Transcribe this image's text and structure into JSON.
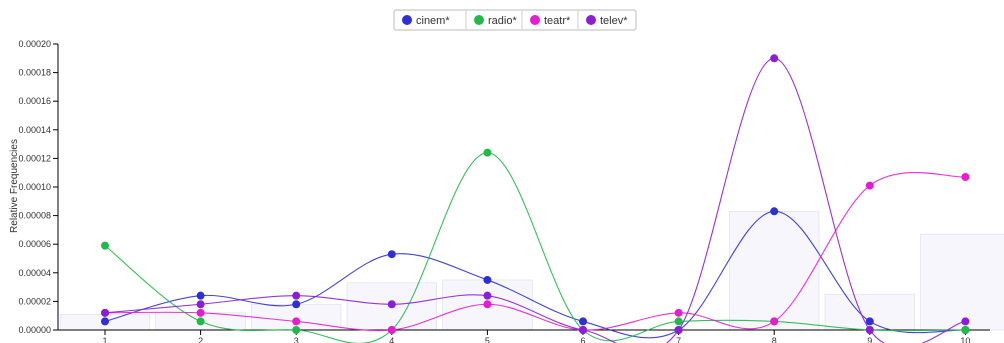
{
  "chart_data": {
    "type": "line",
    "ylabel": "Relative Frequencies",
    "xlabel": "",
    "x": [
      1,
      2,
      3,
      4,
      5,
      6,
      7,
      8,
      9,
      10
    ],
    "ylim": [
      0,
      0.0002
    ],
    "yticks": [
      "0.00000",
      "0.00002",
      "0.00004",
      "0.00006",
      "0.00008",
      "0.00010",
      "0.00012",
      "0.00014",
      "0.00016",
      "0.00018",
      "0.00020"
    ],
    "ytick_values": [
      0,
      2e-05,
      4e-05,
      6e-05,
      8e-05,
      0.0001,
      0.00012,
      0.00014,
      0.00016,
      0.00018,
      0.0002
    ],
    "xticks": [
      "1",
      "2",
      "3",
      "4",
      "5",
      "6",
      "7",
      "8",
      "9",
      "10"
    ],
    "legend_position": "top-center",
    "grid": false,
    "series": [
      {
        "name": "cinem*",
        "color": "#2f2fd8",
        "values": [
          6e-06,
          2.4e-05,
          1.8e-05,
          5.3e-05,
          3.5e-05,
          6e-06,
          0.0,
          8.3e-05,
          6e-06,
          0.0
        ]
      },
      {
        "name": "radio*",
        "color": "#22b84a",
        "values": [
          5.9e-05,
          6e-06,
          0.0,
          0.0,
          0.000124,
          0.0,
          6e-06,
          6e-06,
          0.0,
          0.0
        ]
      },
      {
        "name": "teatr*",
        "color": "#e81ccf",
        "values": [
          1.2e-05,
          1.2e-05,
          6e-06,
          0.0,
          1.8e-05,
          0.0,
          1.2e-05,
          6e-06,
          0.000101,
          0.000107
        ]
      },
      {
        "name": "telev*",
        "color": "#8a1fd6",
        "values": [
          1.2e-05,
          1.8e-05,
          2.4e-05,
          1.8e-05,
          2.4e-05,
          0.0,
          0.0,
          0.00019,
          0.0,
          6e-06
        ]
      }
    ]
  }
}
